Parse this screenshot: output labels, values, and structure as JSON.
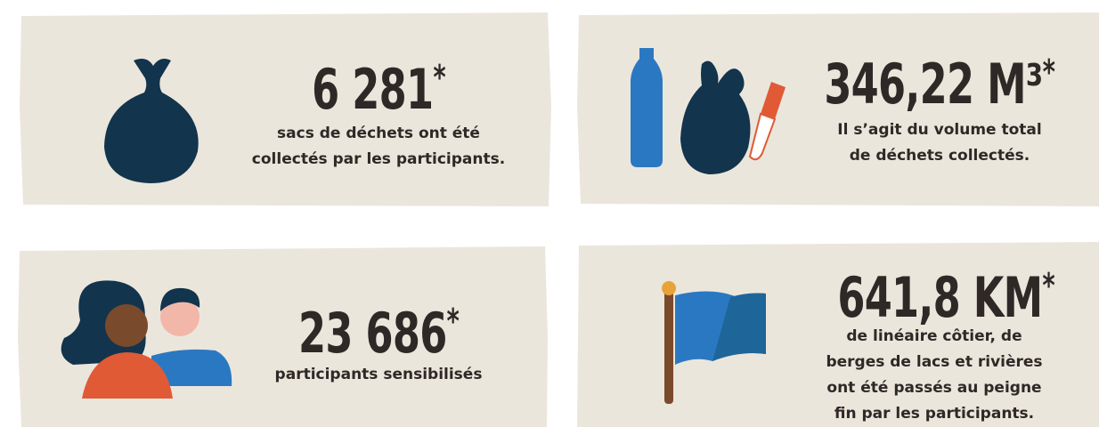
{
  "stats": [
    {
      "figure": "6 281",
      "note_mark": "*",
      "description": [
        "sacs de déchets ont été",
        "collectés par les participants."
      ]
    },
    {
      "figure": "346,22 M³",
      "note_mark": "*",
      "description": [
        "Il s’agit du volume total",
        "de déchets collectés."
      ]
    },
    {
      "figure": "23 686",
      "note_mark": "*",
      "description": [
        "participants sensibilisés"
      ]
    },
    {
      "figure": "641,8 KM",
      "note_mark": "*",
      "description": [
        "de linéaire côtier, de",
        "berges de lacs et rivières",
        "ont été passés au peigne",
        "fin par les participants."
      ]
    }
  ]
}
